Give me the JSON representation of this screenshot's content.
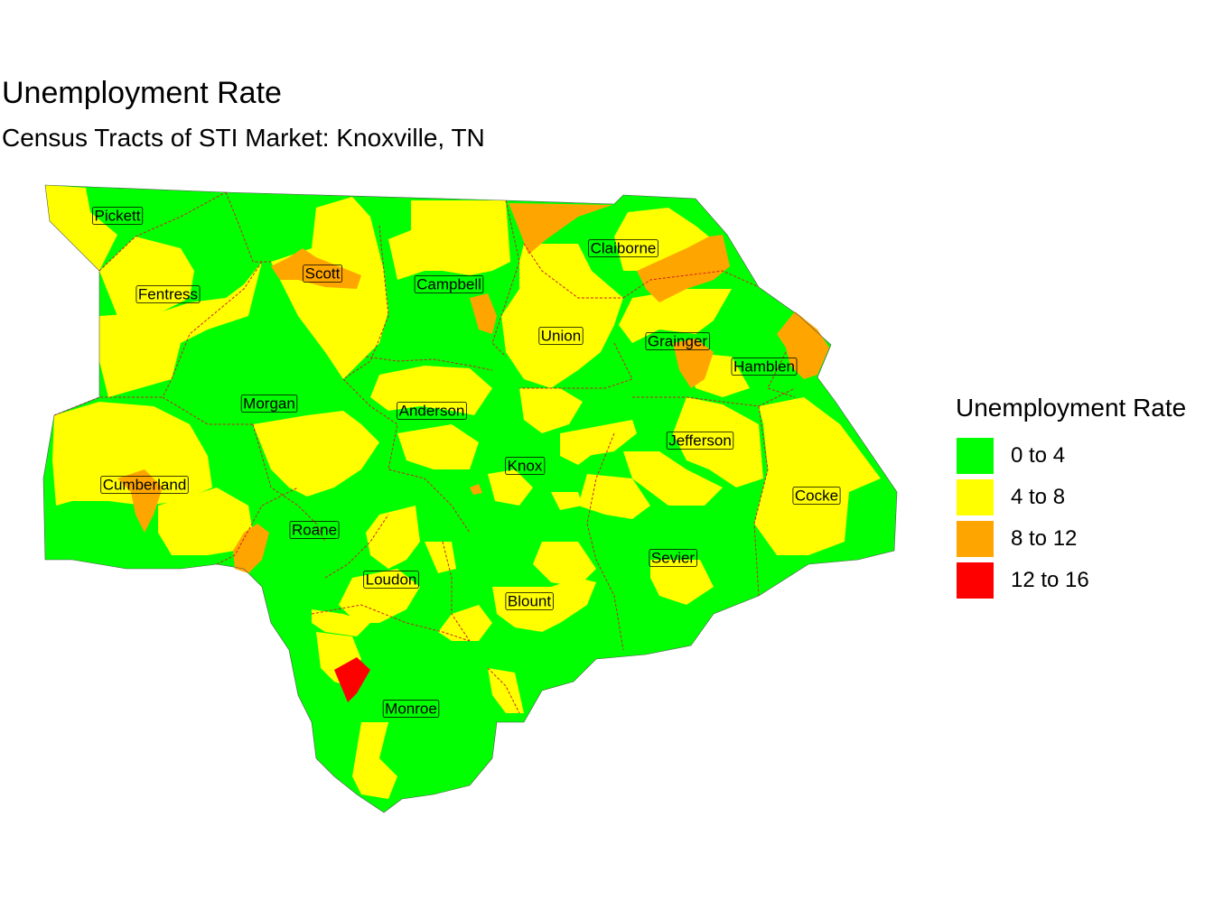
{
  "title": "Unemployment Rate",
  "subtitle": "Census Tracts of STI Market: Knoxville, TN",
  "legend": {
    "title": "Unemployment Rate",
    "items": [
      {
        "label": "0 to 4",
        "color": "#00FF00"
      },
      {
        "label": "4 to 8",
        "color": "#FFFF00"
      },
      {
        "label": "8 to 12",
        "color": "#FFA500"
      },
      {
        "label": "12 to 16",
        "color": "#FF0000"
      }
    ]
  },
  "counties": [
    "Pickett",
    "Fentress",
    "Scott",
    "Campbell",
    "Claiborne",
    "Union",
    "Grainger",
    "Hamblen",
    "Morgan",
    "Anderson",
    "Knox",
    "Jefferson",
    "Cocke",
    "Cumberland",
    "Roane",
    "Loudon",
    "Blount",
    "Sevier",
    "Monroe"
  ],
  "colors": {
    "boundary": "#cc2222",
    "label_border": "#000000"
  }
}
